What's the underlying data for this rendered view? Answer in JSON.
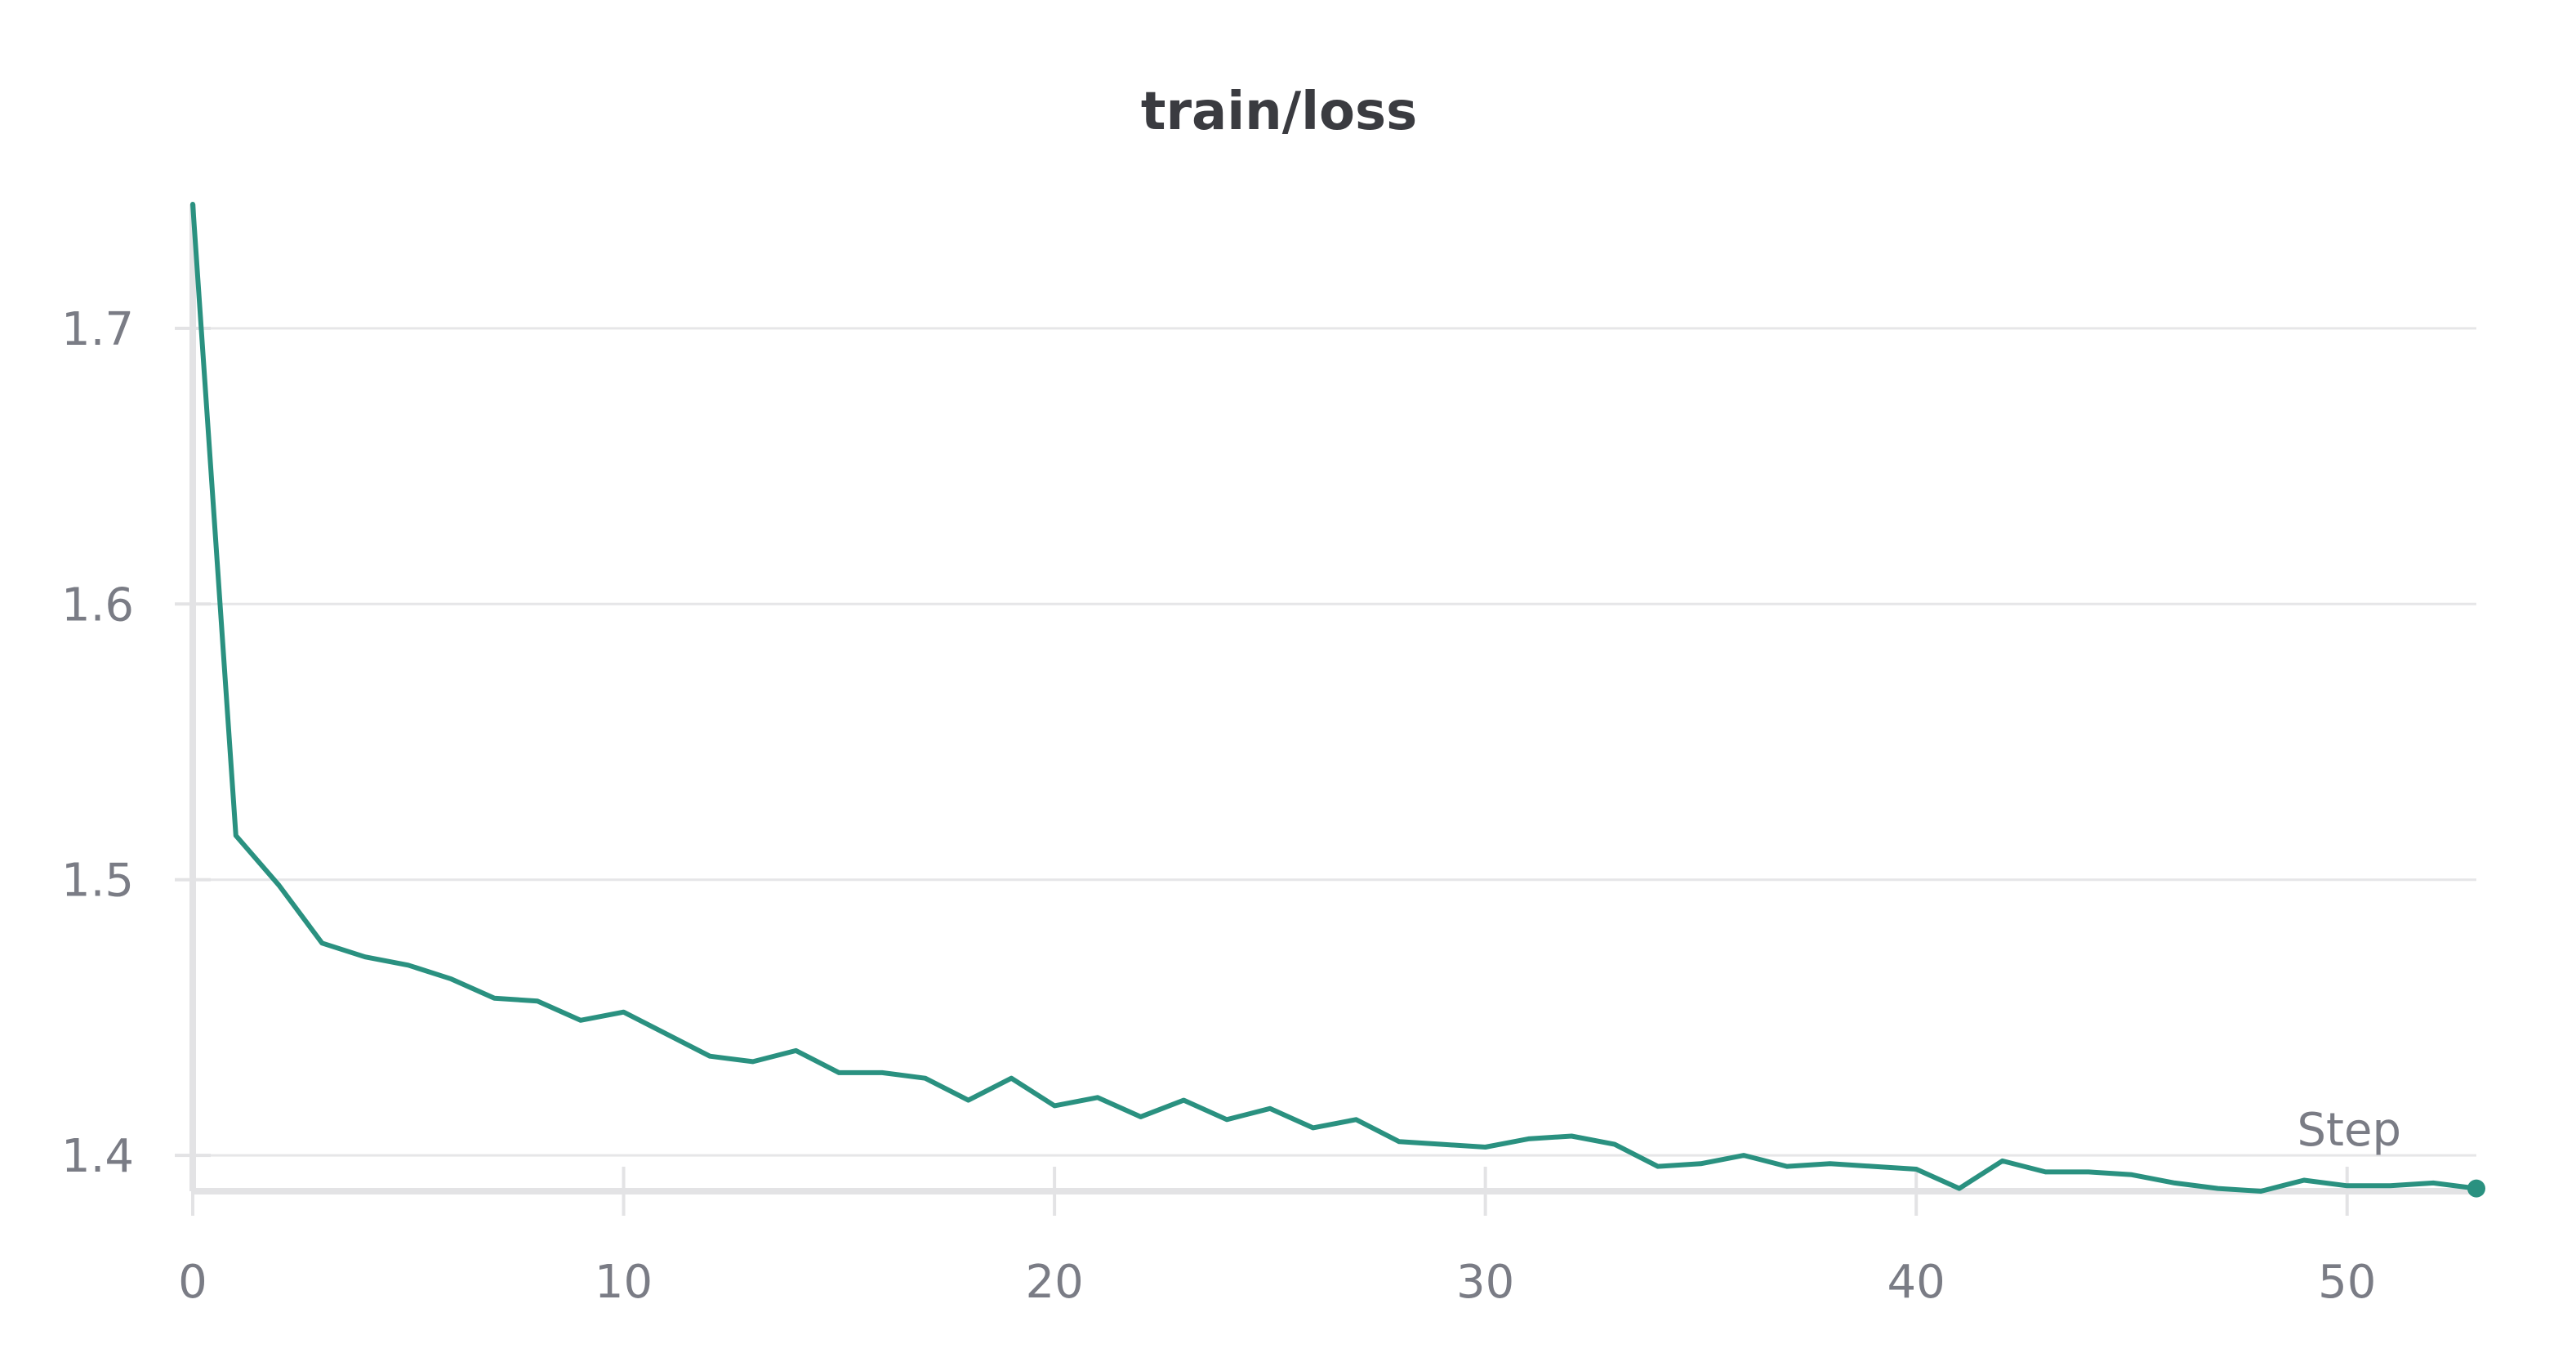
{
  "chart_data": {
    "type": "line",
    "title": "train/loss",
    "xlabel": "Step",
    "ylabel": "",
    "xlim": [
      0,
      53
    ],
    "ylim": [
      1.387,
      1.745
    ],
    "xticks": [
      0,
      10,
      20,
      30,
      40,
      50
    ],
    "yticks": [
      1.4,
      1.5,
      1.6,
      1.7
    ],
    "xtick_labels": [
      "0",
      "10",
      "20",
      "30",
      "40",
      "50"
    ],
    "ytick_labels": [
      "1.4",
      "1.5",
      "1.6",
      "1.7"
    ],
    "grid": true,
    "legend": "none",
    "colors": {
      "line": "#2a9180",
      "grid": "#e6e6e8",
      "axis": "#e3e3e5",
      "text": "#7a7c85",
      "title": "#3a3b40"
    },
    "series": [
      {
        "x": [
          0,
          1,
          2,
          3,
          4,
          5,
          6,
          7,
          8,
          9,
          10,
          11,
          12,
          13,
          14,
          15,
          16,
          17,
          18,
          19,
          20,
          21,
          22,
          23,
          24,
          25,
          26,
          27,
          28,
          29,
          30,
          31,
          32,
          33,
          34,
          35,
          36,
          37,
          38,
          39,
          40,
          41,
          42,
          43,
          44,
          45,
          46,
          47,
          48,
          49,
          50,
          51,
          52,
          53
        ],
        "y": [
          1.745,
          1.516,
          1.498,
          1.477,
          1.472,
          1.469,
          1.464,
          1.457,
          1.456,
          1.449,
          1.452,
          1.444,
          1.436,
          1.434,
          1.438,
          1.43,
          1.43,
          1.428,
          1.42,
          1.428,
          1.418,
          1.421,
          1.414,
          1.42,
          1.413,
          1.417,
          1.41,
          1.413,
          1.405,
          1.404,
          1.403,
          1.406,
          1.407,
          1.404,
          1.396,
          1.397,
          1.4,
          1.396,
          1.397,
          1.396,
          1.395,
          1.388,
          1.398,
          1.394,
          1.394,
          1.393,
          1.39,
          1.388,
          1.387,
          1.391,
          1.389,
          1.389,
          1.39,
          1.388
        ]
      }
    ]
  }
}
